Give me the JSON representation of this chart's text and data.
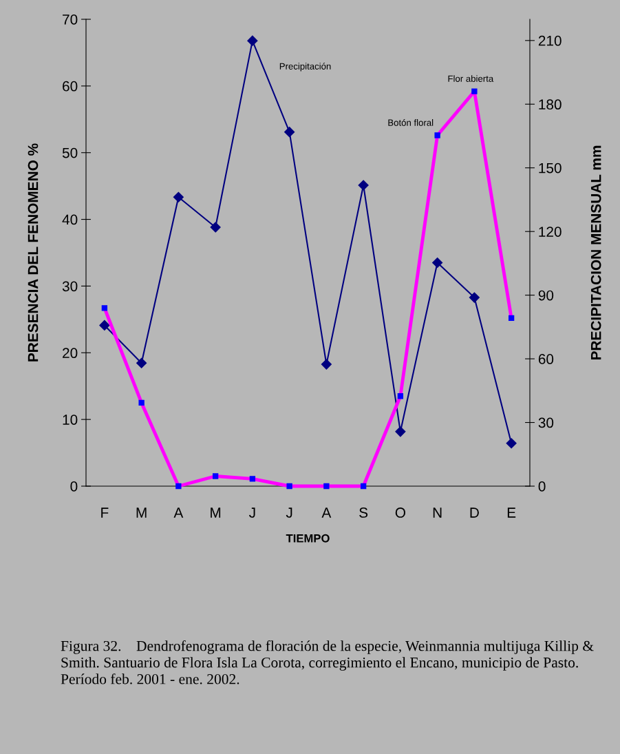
{
  "chart_data": {
    "type": "line",
    "categories": [
      "F",
      "M",
      "A",
      "M",
      "J",
      "J",
      "A",
      "S",
      "O",
      "N",
      "D",
      "E"
    ],
    "xlabel": "TIEMPO",
    "ylabel": "PRESENCIA DEL FENOMENO %",
    "y2label": "PRECIPITACION MENSUAL mm",
    "series": [
      {
        "name": "Precipitación",
        "color": "#000080",
        "axis": "y2",
        "marker": "diamond",
        "values": [
          75.8,
          58,
          136.2,
          122,
          209.9,
          166.9,
          57.4,
          141.8,
          25.7,
          105.3,
          88.9,
          20.2
        ]
      },
      {
        "color": "#ff00ff",
        "marker": "square",
        "values": [
          26.7,
          12.5,
          0,
          1.5,
          1.1,
          0,
          0,
          0,
          13.5,
          52.6,
          59.2,
          25.2
        ]
      }
    ],
    "ylim": [
      0,
      70
    ],
    "yticks": [
      0,
      10,
      20,
      30,
      40,
      50,
      60,
      70
    ],
    "y2lim": [
      0,
      220
    ],
    "y2ticks": [
      0,
      30,
      60,
      90,
      120,
      150,
      180,
      210
    ],
    "grid": false,
    "legend": false,
    "annotations": [
      {
        "text": "Botón floral",
        "x": "N",
        "y": 52.6
      },
      {
        "text": "Flor abierta",
        "x": "D",
        "y": 59.2
      },
      "Figura 32.    Dendrofenograma de floración de la especie, Weinmannia multijuga Killip & Smith. Santuario de Flora Isla La Corota, corregimiento el Encano, municipio de Pasto. Período feb. 2001 - ene. 2002."
    ]
  }
}
